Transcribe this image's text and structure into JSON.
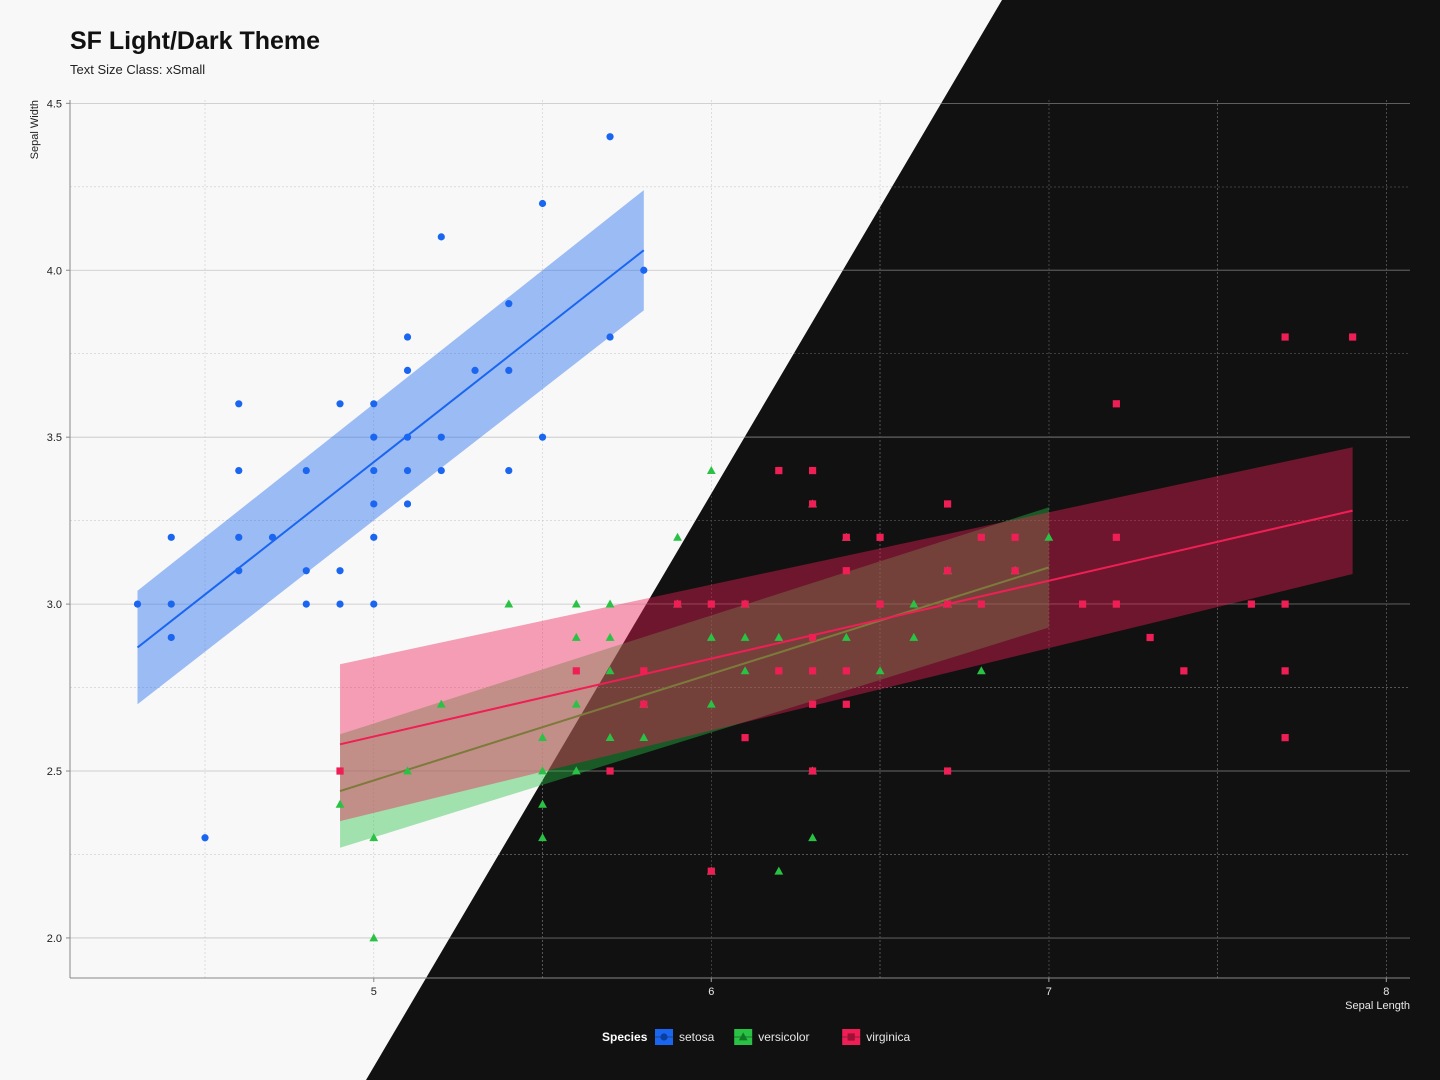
{
  "chart_data": {
    "type": "scatter",
    "title": "SF Light/Dark Theme",
    "subtitle": "Text Size Class: xSmall",
    "xlabel": "Sepal Length",
    "ylabel": "Sepal Width",
    "xlim": [
      4.1,
      8.07
    ],
    "ylim": [
      1.88,
      4.51
    ],
    "x_ticks": [
      5,
      6,
      7,
      8
    ],
    "y_ticks": [
      2.0,
      2.5,
      3.0,
      3.5,
      4.0,
      4.5
    ],
    "x_tick_labels": [
      "5",
      "6",
      "7",
      "8"
    ],
    "y_tick_labels": [
      "2.0",
      "2.5",
      "3.0",
      "3.5",
      "4.0",
      "4.5"
    ],
    "grid": true,
    "legend_title": "Species",
    "legend_position": "bottom",
    "colors": {
      "light_background": "#f8f8f8",
      "dark_background": "#111111",
      "setosa": "#1a66f0",
      "versicolor": "#29c244",
      "virginica": "#ef1f55"
    },
    "series": [
      {
        "name": "setosa",
        "marker": "circle",
        "color": "#1a66f0",
        "points": [
          [
            4.3,
            3.0
          ],
          [
            4.4,
            2.9
          ],
          [
            4.4,
            3.0
          ],
          [
            4.4,
            3.2
          ],
          [
            4.5,
            2.3
          ],
          [
            4.6,
            3.1
          ],
          [
            4.6,
            3.2
          ],
          [
            4.6,
            3.4
          ],
          [
            4.6,
            3.6
          ],
          [
            4.7,
            3.2
          ],
          [
            4.8,
            3.0
          ],
          [
            4.8,
            3.1
          ],
          [
            4.8,
            3.4
          ],
          [
            4.9,
            3.0
          ],
          [
            4.9,
            3.1
          ],
          [
            4.9,
            3.6
          ],
          [
            5.0,
            3.0
          ],
          [
            5.0,
            3.2
          ],
          [
            5.0,
            3.3
          ],
          [
            5.0,
            3.4
          ],
          [
            5.0,
            3.5
          ],
          [
            5.0,
            3.6
          ],
          [
            5.1,
            3.3
          ],
          [
            5.1,
            3.4
          ],
          [
            5.1,
            3.5
          ],
          [
            5.1,
            3.7
          ],
          [
            5.1,
            3.8
          ],
          [
            5.2,
            3.4
          ],
          [
            5.2,
            3.5
          ],
          [
            5.2,
            4.1
          ],
          [
            5.3,
            3.7
          ],
          [
            5.4,
            3.4
          ],
          [
            5.4,
            3.7
          ],
          [
            5.4,
            3.9
          ],
          [
            5.5,
            3.5
          ],
          [
            5.5,
            4.2
          ],
          [
            5.7,
            3.8
          ],
          [
            5.7,
            4.4
          ],
          [
            5.8,
            4.0
          ]
        ],
        "fit": {
          "x": [
            4.3,
            5.8
          ],
          "y": [
            2.87,
            4.06
          ],
          "ci_lower": [
            2.7,
            3.88
          ],
          "ci_upper": [
            3.04,
            4.24
          ]
        }
      },
      {
        "name": "versicolor",
        "marker": "triangle",
        "color": "#29c244",
        "points": [
          [
            4.9,
            2.4
          ],
          [
            5.0,
            2.0
          ],
          [
            5.0,
            2.3
          ],
          [
            5.1,
            2.5
          ],
          [
            5.2,
            2.7
          ],
          [
            5.4,
            3.0
          ],
          [
            5.5,
            2.3
          ],
          [
            5.5,
            2.4
          ],
          [
            5.5,
            2.5
          ],
          [
            5.5,
            2.6
          ],
          [
            5.6,
            2.5
          ],
          [
            5.6,
            2.7
          ],
          [
            5.6,
            2.9
          ],
          [
            5.6,
            3.0
          ],
          [
            5.7,
            2.6
          ],
          [
            5.7,
            2.8
          ],
          [
            5.7,
            2.9
          ],
          [
            5.7,
            3.0
          ],
          [
            5.8,
            2.6
          ],
          [
            5.8,
            2.7
          ],
          [
            5.9,
            3.0
          ],
          [
            5.9,
            3.2
          ],
          [
            6.0,
            2.2
          ],
          [
            6.0,
            2.7
          ],
          [
            6.0,
            2.9
          ],
          [
            6.0,
            3.4
          ],
          [
            6.1,
            2.8
          ],
          [
            6.1,
            2.9
          ],
          [
            6.1,
            3.0
          ],
          [
            6.2,
            2.2
          ],
          [
            6.2,
            2.9
          ],
          [
            6.3,
            2.3
          ],
          [
            6.3,
            2.5
          ],
          [
            6.3,
            3.3
          ],
          [
            6.4,
            2.9
          ],
          [
            6.4,
            3.2
          ],
          [
            6.5,
            2.8
          ],
          [
            6.6,
            2.9
          ],
          [
            6.6,
            3.0
          ],
          [
            6.7,
            3.0
          ],
          [
            6.7,
            3.1
          ],
          [
            6.8,
            2.8
          ],
          [
            6.9,
            3.1
          ],
          [
            7.0,
            3.2
          ]
        ],
        "fit": {
          "x": [
            4.9,
            7.0
          ],
          "y": [
            2.44,
            3.11
          ],
          "ci_lower": [
            2.27,
            2.93
          ],
          "ci_upper": [
            2.61,
            3.29
          ]
        }
      },
      {
        "name": "virginica",
        "marker": "square",
        "color": "#ef1f55",
        "points": [
          [
            4.9,
            2.5
          ],
          [
            5.6,
            2.8
          ],
          [
            5.7,
            2.5
          ],
          [
            5.8,
            2.7
          ],
          [
            5.8,
            2.8
          ],
          [
            5.9,
            3.0
          ],
          [
            6.0,
            2.2
          ],
          [
            6.0,
            3.0
          ],
          [
            6.1,
            2.6
          ],
          [
            6.1,
            3.0
          ],
          [
            6.2,
            2.8
          ],
          [
            6.2,
            3.4
          ],
          [
            6.3,
            2.5
          ],
          [
            6.3,
            2.7
          ],
          [
            6.3,
            2.8
          ],
          [
            6.3,
            2.9
          ],
          [
            6.3,
            3.3
          ],
          [
            6.3,
            3.4
          ],
          [
            6.4,
            2.7
          ],
          [
            6.4,
            2.8
          ],
          [
            6.4,
            3.1
          ],
          [
            6.4,
            3.2
          ],
          [
            6.5,
            3.0
          ],
          [
            6.5,
            3.2
          ],
          [
            6.7,
            2.5
          ],
          [
            6.7,
            3.0
          ],
          [
            6.7,
            3.1
          ],
          [
            6.7,
            3.3
          ],
          [
            6.8,
            3.0
          ],
          [
            6.8,
            3.2
          ],
          [
            6.9,
            3.1
          ],
          [
            6.9,
            3.2
          ],
          [
            7.1,
            3.0
          ],
          [
            7.2,
            3.0
          ],
          [
            7.2,
            3.2
          ],
          [
            7.2,
            3.6
          ],
          [
            7.3,
            2.9
          ],
          [
            7.4,
            2.8
          ],
          [
            7.6,
            3.0
          ],
          [
            7.7,
            2.6
          ],
          [
            7.7,
            2.8
          ],
          [
            7.7,
            3.0
          ],
          [
            7.7,
            3.8
          ],
          [
            7.9,
            3.8
          ]
        ],
        "fit": {
          "x": [
            4.9,
            7.9
          ],
          "y": [
            2.58,
            3.28
          ],
          "ci_lower": [
            2.35,
            3.09
          ],
          "ci_upper": [
            2.82,
            3.47
          ]
        }
      }
    ]
  }
}
